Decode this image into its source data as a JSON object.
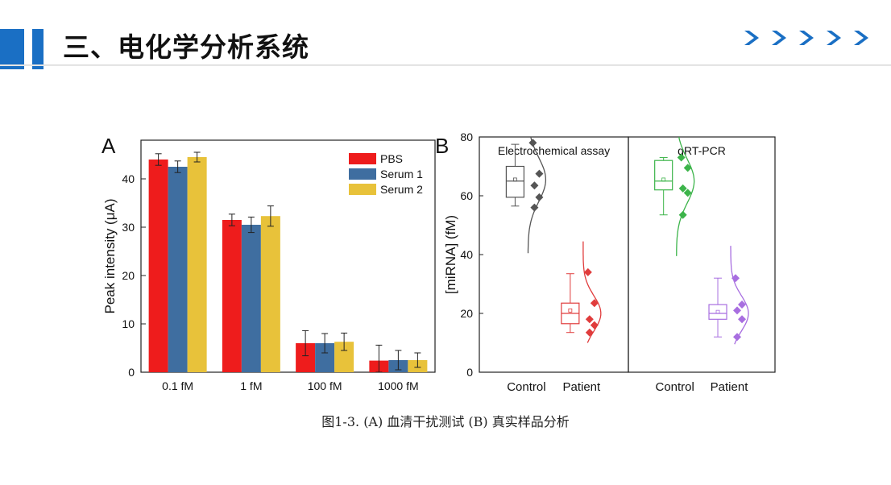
{
  "header": {
    "title": "三、电化学分析系统",
    "accent_color": "#1a6fc4",
    "chevron_icons": [
      "chevron-right-icon",
      "chevron-right-icon",
      "chevron-right-icon",
      "chevron-right-icon",
      "chevron-right-icon"
    ]
  },
  "caption": "图1-3. (A) 血清干扰测试 (B) 真实样品分析",
  "chart_data": [
    {
      "panel": "A",
      "type": "bar",
      "categories": [
        "0.1 fM",
        "1 fM",
        "100 fM",
        "1000 fM"
      ],
      "series": [
        {
          "name": "PBS",
          "color": "#ee1c1c",
          "values": [
            44.0,
            31.5,
            6.0,
            2.4
          ],
          "errors": [
            1.2,
            1.2,
            2.6,
            3.2
          ]
        },
        {
          "name": "Serum 1",
          "color": "#3f6ea0",
          "values": [
            42.5,
            30.5,
            6.0,
            2.5
          ],
          "errors": [
            1.2,
            1.6,
            2.0,
            2.0
          ]
        },
        {
          "name": "Serum 2",
          "color": "#e8c23a",
          "values": [
            44.5,
            32.3,
            6.3,
            2.5
          ],
          "errors": [
            1.0,
            2.1,
            1.8,
            1.5
          ]
        }
      ],
      "ylabel": "Peak intensity (μA)",
      "ylim": [
        0,
        48
      ],
      "yticks": [
        0,
        10,
        20,
        30,
        40
      ],
      "legend": "top-right"
    },
    {
      "panel": "B",
      "type": "box",
      "ylabel": "[miRNA] (fM)",
      "ylim": [
        0,
        80
      ],
      "yticks": [
        0,
        20,
        40,
        60,
        80
      ],
      "categories": [
        "Control",
        "Patient"
      ],
      "subpanels": [
        {
          "title": "Electrochemical assay",
          "groups": [
            {
              "name": "Control",
              "color": "#555555",
              "whisker": [
                56.5,
                77.5
              ],
              "box": [
                59.5,
                70.0
              ],
              "median": 65.0,
              "mean": 65.5,
              "points": [
                78.0,
                67.5,
                63.5,
                59.5,
                56.0
              ],
              "dist": {
                "mu": 65.5,
                "sigma": 7.5,
                "range": [
                  40.5,
                  80.0
                ]
              }
            },
            {
              "name": "Patient",
              "color": "#e03c3c",
              "whisker": [
                13.5,
                33.5
              ],
              "box": [
                16.5,
                23.5
              ],
              "median": 20.0,
              "mean": 21.0,
              "points": [
                34.0,
                23.5,
                18.0,
                16.0,
                13.5
              ],
              "dist": {
                "mu": 20.0,
                "sigma": 6.0,
                "range": [
                  10.0,
                  44.5
                ]
              }
            }
          ]
        },
        {
          "title": "qRT-PCR",
          "groups": [
            {
              "name": "Control",
              "color": "#3cb44a",
              "whisker": [
                53.5,
                73.0
              ],
              "box": [
                62.0,
                72.0
              ],
              "median": 65.0,
              "mean": 65.5,
              "points": [
                73.0,
                69.5,
                62.5,
                61.0,
                53.5
              ],
              "dist": {
                "mu": 65.0,
                "sigma": 7.5,
                "range": [
                  39.5,
                  80.0
                ]
              }
            },
            {
              "name": "Patient",
              "color": "#a86ee0",
              "whisker": [
                12.0,
                32.0
              ],
              "box": [
                18.0,
                23.0
              ],
              "median": 20.0,
              "mean": 20.5,
              "points": [
                32.0,
                23.0,
                21.0,
                18.0,
                12.0
              ],
              "dist": {
                "mu": 20.0,
                "sigma": 6.0,
                "range": [
                  9.5,
                  43.0
                ]
              }
            }
          ]
        }
      ]
    }
  ]
}
